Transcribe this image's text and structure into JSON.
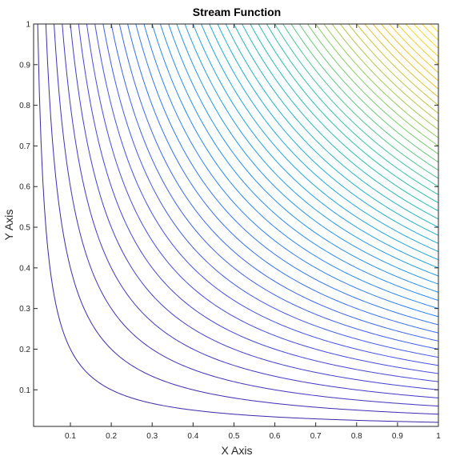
{
  "chart_data": {
    "type": "contour",
    "title": "Stream Function",
    "xlabel": "X Axis",
    "ylabel": "Y Axis",
    "xlim": [
      0.01,
      1
    ],
    "ylim": [
      0.01,
      1
    ],
    "xticks": [
      0.1,
      0.2,
      0.3,
      0.4,
      0.5,
      0.6,
      0.7,
      0.8,
      0.9,
      1
    ],
    "yticks": [
      0.1,
      0.2,
      0.3,
      0.4,
      0.5,
      0.6,
      0.7,
      0.8,
      0.9,
      1
    ],
    "xtick_labels": [
      "0.1",
      "0.2",
      "0.3",
      "0.4",
      "0.5",
      "0.6",
      "0.7",
      "0.8",
      "0.9",
      "1"
    ],
    "ytick_labels": [
      "0.1",
      "0.2",
      "0.3",
      "0.4",
      "0.5",
      "0.6",
      "0.7",
      "0.8",
      "0.9",
      "1"
    ],
    "function": "x*y",
    "levels": [
      0.02,
      0.04,
      0.06,
      0.08,
      0.1,
      0.12,
      0.14,
      0.16,
      0.18,
      0.2,
      0.22,
      0.24,
      0.26,
      0.28,
      0.3,
      0.32,
      0.34,
      0.36,
      0.38,
      0.4,
      0.42,
      0.44,
      0.46,
      0.48,
      0.5,
      0.52,
      0.54,
      0.56,
      0.58,
      0.6,
      0.62,
      0.64,
      0.66,
      0.68,
      0.7,
      0.72,
      0.74,
      0.76,
      0.78,
      0.8,
      0.82,
      0.84,
      0.86,
      0.88,
      0.9,
      0.92,
      0.94,
      0.96,
      0.98
    ],
    "colormap": [
      "#3e26a8",
      "#4751e6",
      "#2d84f4",
      "#1fa8d9",
      "#2ec1a6",
      "#8ccc64",
      "#e8c02f",
      "#f9e21c"
    ],
    "grid": false,
    "box": true
  }
}
